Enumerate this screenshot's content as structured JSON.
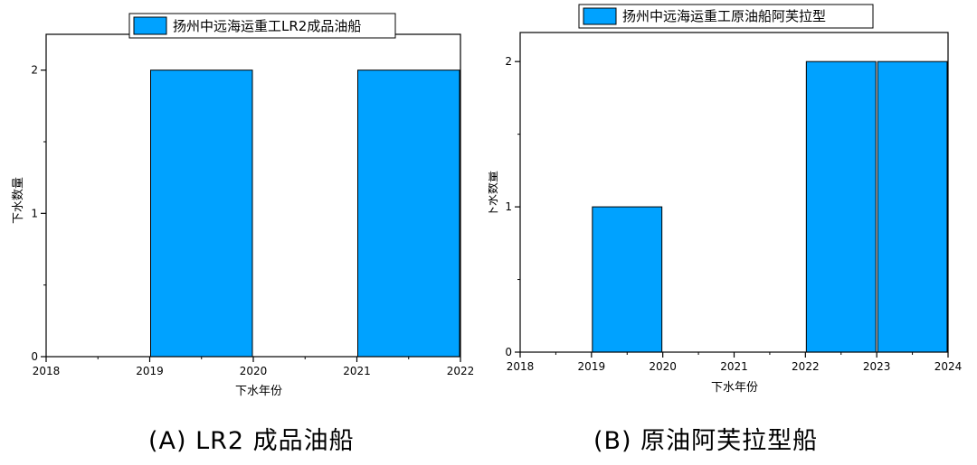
{
  "captions": [
    "(A) LR2 成品油船",
    "(B) 原油阿芙拉型船"
  ],
  "colors": {
    "bar": "#00a2ff",
    "axis": "#000000"
  },
  "chart_data": [
    {
      "type": "bar",
      "legend": "扬州中远海运重工LR2成品油船",
      "legend_placement": "top",
      "xlabel": "下水年份",
      "ylabel": "下水数量",
      "xlim": [
        2018,
        2022
      ],
      "ylim": [
        0,
        2.25
      ],
      "xticks": [
        2018,
        2019,
        2020,
        2021,
        2022
      ],
      "yticks": [
        0,
        1,
        2
      ],
      "bars": [
        {
          "start": 2019,
          "end": 2020,
          "value": 2
        },
        {
          "start": 2021,
          "end": 2022,
          "value": 2
        }
      ],
      "grid": false
    },
    {
      "type": "bar",
      "legend": "扬州中远海运重工原油船阿芙拉型",
      "legend_placement": "top",
      "xlabel": "下水年份",
      "ylabel": "下水数量",
      "xlim": [
        2018,
        2024
      ],
      "ylim": [
        0,
        2.2
      ],
      "xticks": [
        2018,
        2019,
        2020,
        2021,
        2022,
        2023,
        2024
      ],
      "yticks": [
        0,
        1,
        2
      ],
      "bars": [
        {
          "start": 2019,
          "end": 2020,
          "value": 1
        },
        {
          "start": 2022,
          "end": 2023,
          "value": 2
        },
        {
          "start": 2023,
          "end": 2024,
          "value": 2
        }
      ],
      "grid": false
    }
  ]
}
